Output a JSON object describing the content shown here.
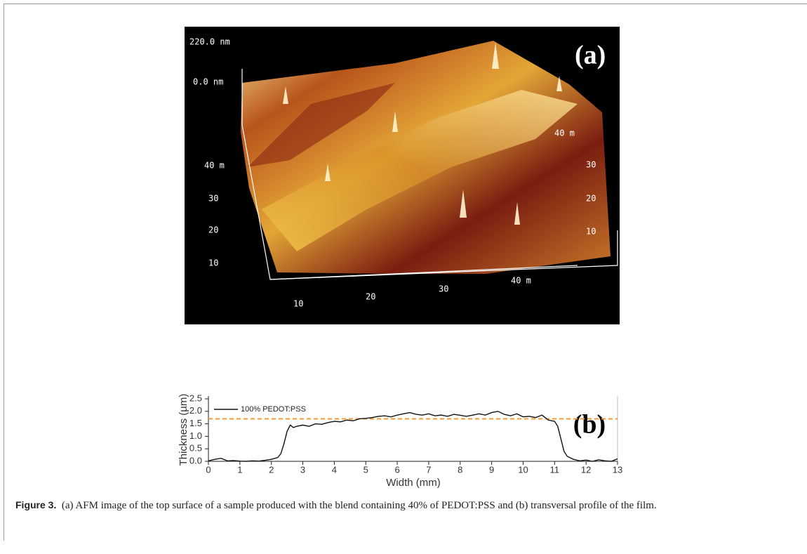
{
  "panel_a": {
    "label": "(a)",
    "z_labels": [
      "220.0 nm",
      "0.0 nm"
    ],
    "left_labels": [
      "40 m",
      "30",
      "20",
      "10"
    ],
    "right_labels": [
      "40 m",
      "30",
      "20",
      "10"
    ],
    "bottom_labels": [
      "10",
      "20",
      "30",
      "40 m"
    ]
  },
  "chart_data": {
    "type": "line",
    "label": "(b)",
    "x_label": "Width (mm)",
    "y_label": "Thickness (µm)",
    "x": [
      0,
      0.2,
      0.4,
      0.6,
      0.8,
      1,
      1.2,
      1.4,
      1.6,
      1.8,
      2,
      2.2,
      2.3,
      2.4,
      2.5,
      2.6,
      2.7,
      2.8,
      3,
      3.2,
      3.4,
      3.6,
      3.8,
      4,
      4.2,
      4.4,
      4.6,
      4.8,
      5,
      5.2,
      5.4,
      5.6,
      5.8,
      6,
      6.2,
      6.4,
      6.6,
      6.8,
      7,
      7.2,
      7.4,
      7.6,
      7.8,
      8,
      8.2,
      8.4,
      8.6,
      8.8,
      9,
      9.2,
      9.4,
      9.6,
      9.8,
      10,
      10.2,
      10.4,
      10.6,
      10.8,
      11,
      11.1,
      11.2,
      11.3,
      11.4,
      11.6,
      11.8,
      12,
      12.2,
      12.4,
      12.6,
      12.8,
      13
    ],
    "series": [
      {
        "name": "100% PEDOT:PSS",
        "color": "#111111",
        "values": [
          0.02,
          0.08,
          0.12,
          0.02,
          0.03,
          0.01,
          0.0,
          0.02,
          0.01,
          0.04,
          0.08,
          0.15,
          0.3,
          0.7,
          1.2,
          1.45,
          1.35,
          1.4,
          1.45,
          1.4,
          1.5,
          1.48,
          1.55,
          1.6,
          1.58,
          1.65,
          1.62,
          1.7,
          1.72,
          1.75,
          1.8,
          1.82,
          1.78,
          1.85,
          1.9,
          1.95,
          1.88,
          1.85,
          1.9,
          1.82,
          1.85,
          1.8,
          1.88,
          1.84,
          1.8,
          1.85,
          1.9,
          1.85,
          1.95,
          2.0,
          1.88,
          1.82,
          1.9,
          1.78,
          1.8,
          1.75,
          1.85,
          1.65,
          1.6,
          1.4,
          0.9,
          0.4,
          0.2,
          0.08,
          0.02,
          0.05,
          0.0,
          0.06,
          0.02,
          0.0,
          0.1
        ]
      }
    ],
    "reference_line": {
      "value": 1.7,
      "color": "#f39a2b",
      "style": "dashed"
    },
    "xlim": [
      0,
      13
    ],
    "xticks": [
      0,
      1,
      2,
      3,
      4,
      5,
      6,
      7,
      8,
      9,
      10,
      11,
      12,
      13
    ],
    "ylim": [
      0,
      2.5
    ],
    "yticks": [
      {
        "value": 0,
        "label": "0.0"
      },
      0.5,
      {
        "value": 1,
        "label": "1.0"
      },
      1.5,
      {
        "value": 2,
        "label": "2.0"
      },
      2.5
    ]
  },
  "caption": {
    "label": "Figure 3.",
    "text": "(a) AFM image of the top surface of a sample produced with the blend containing 40% of PEDOT:PSS and (b) transversal profile of the film."
  }
}
